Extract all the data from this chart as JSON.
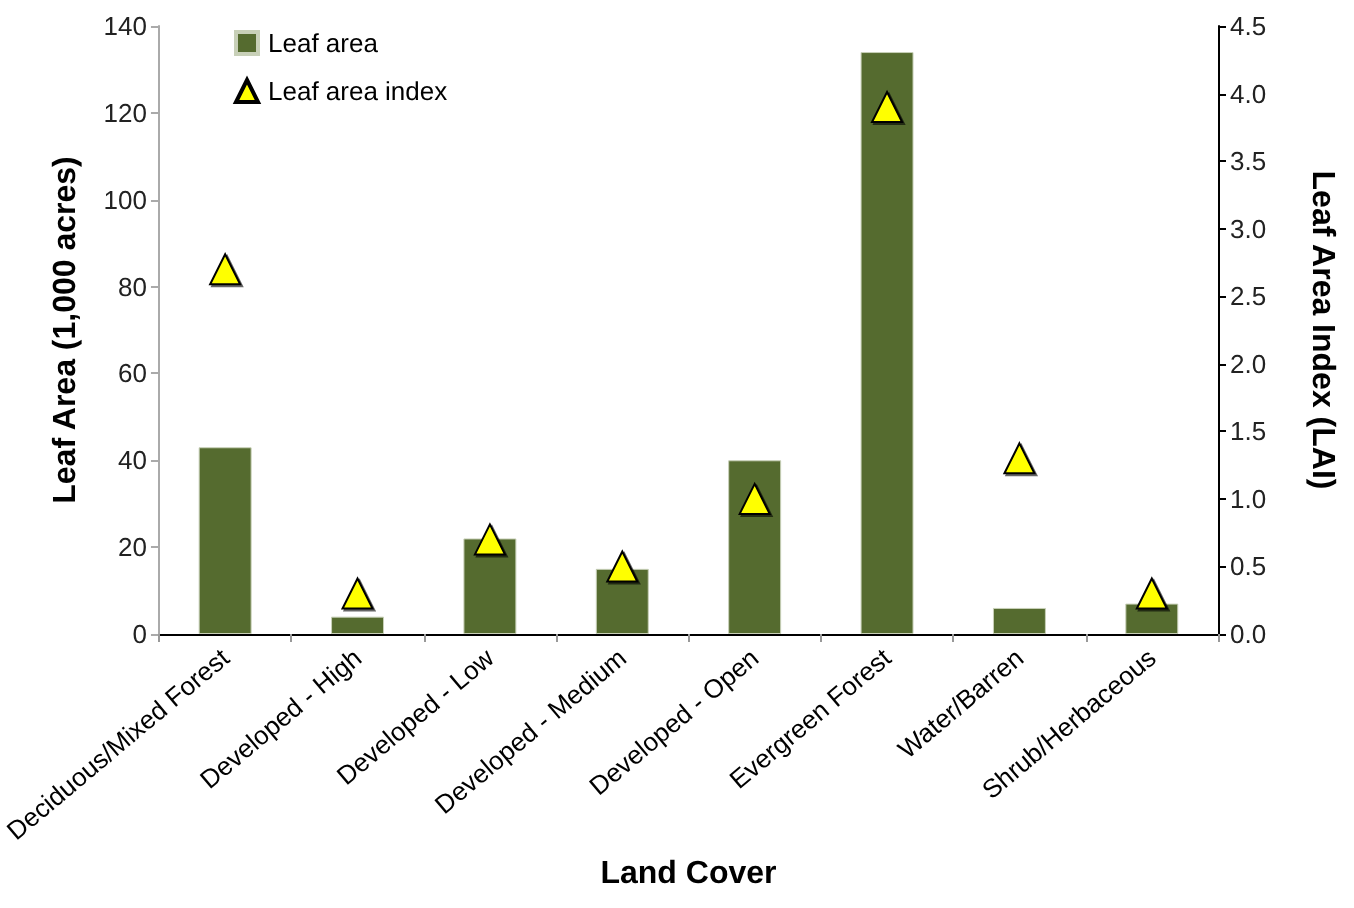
{
  "chart_data": {
    "type": "bar",
    "categories": [
      "Deciduous/Mixed Forest",
      "Developed - High",
      "Developed - Low",
      "Developed - Medium",
      "Developed - Open",
      "Evergreen Forest",
      "Water/Barren",
      "Shrub/Herbaceous"
    ],
    "series": [
      {
        "name": "Leaf area",
        "color": "#556b2f",
        "values": [
          43,
          4,
          22,
          15,
          40,
          134,
          6,
          7
        ]
      },
      {
        "name": "Leaf area index",
        "type": "scatter",
        "axis": "y2",
        "color": "#ffff00",
        "values": [
          2.7,
          0.3,
          0.7,
          0.5,
          1.0,
          3.9,
          1.3,
          0.3
        ]
      }
    ],
    "xlabel": "Land Cover",
    "ylabel": "Leaf Area (1,000 acres)",
    "y2label": "Leaf Area Index (LAI)",
    "ylim": [
      0,
      140
    ],
    "yticks": [
      0,
      20,
      40,
      60,
      80,
      100,
      120,
      140
    ],
    "y2lim": [
      0,
      4.5
    ],
    "y2ticks": [
      {
        "value": 0,
        "label": "0.0"
      },
      0.5,
      {
        "value": 1,
        "label": "1.0"
      },
      1.5,
      {
        "value": 2,
        "label": "2.0"
      },
      2.5,
      {
        "value": 3,
        "label": "3.0"
      },
      3.5,
      {
        "value": 4,
        "label": "4.0"
      },
      4.5
    ],
    "legend": "top left",
    "marker": "triangle"
  }
}
